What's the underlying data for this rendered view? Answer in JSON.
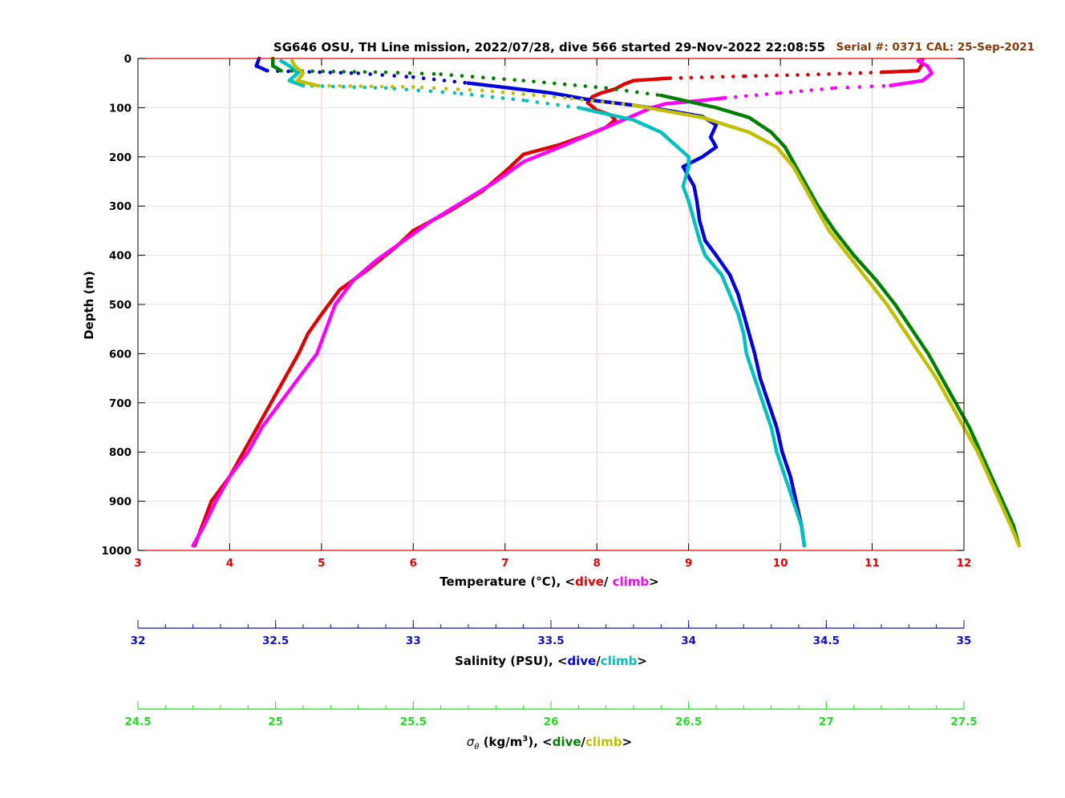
{
  "colors": {
    "temp_axis": "#e60000",
    "sal_axis": "#1010c0",
    "dens_axis": "#22e022",
    "temp_dive": "#e00000",
    "temp_climb": "#ff00ff",
    "sal_dive": "#0000dd",
    "sal_climb": "#00c0c0",
    "dens_dive": "#007f00",
    "dens_climb": "#c0c000",
    "serial": "#8b3a0a",
    "grid": "#f5c8c8"
  },
  "chart_data": {
    "type": "scatter",
    "title": "SG646 OSU, TH Line mission, 2022/07/28, dive 566 started 29-Nov-2022 22:08:55",
    "annotation": "Serial #: 0371  CAL: 25-Sep-2021",
    "ylabel": "Depth (m)",
    "ylim": [
      0,
      1000
    ],
    "yticks": [
      "0",
      "100",
      "200",
      "300",
      "400",
      "500",
      "600",
      "700",
      "800",
      "900",
      "1000"
    ],
    "grid": true,
    "axes": {
      "temperature": {
        "label_prefix": "Temperature (°C), <",
        "dive_label": "dive",
        "sep": "/ ",
        "climb_label": "climb",
        "label_suffix": ">",
        "xlim": [
          3,
          12
        ],
        "ticks": [
          "3",
          "4",
          "5",
          "6",
          "7",
          "8",
          "9",
          "10",
          "11",
          "12"
        ]
      },
      "salinity": {
        "label_prefix": "Salinity (PSU), <",
        "dive_label": "dive",
        "sep": "/",
        "climb_label": "climb",
        "label_suffix": ">",
        "xlim": [
          32,
          35
        ],
        "ticks": [
          "32",
          "32.5",
          "33",
          "33.5",
          "34",
          "34.5",
          "35"
        ]
      },
      "density": {
        "label_symbol": "σ",
        "label_sub": "θ",
        "label_unit": " (kg/m",
        "label_sup": "3",
        "label_prefix": "), <",
        "dive_label": "dive",
        "sep": "/",
        "climb_label": "climb",
        "label_suffix": ">",
        "xlim": [
          24.5,
          27.5
        ],
        "ticks": [
          "24.5",
          "25",
          "25.5",
          "26",
          "26.5",
          "27",
          "27.5"
        ]
      }
    },
    "series": [
      {
        "name": "temperature dive",
        "axis": "temperature",
        "points": [
          [
            11.55,
            10
          ],
          [
            11.5,
            25
          ],
          [
            11.1,
            28
          ],
          [
            10.3,
            33
          ],
          [
            9.6,
            36
          ],
          [
            8.8,
            40
          ],
          [
            8.4,
            45
          ],
          [
            8.3,
            52
          ],
          [
            8.2,
            62
          ],
          [
            8.05,
            70
          ],
          [
            7.95,
            78
          ],
          [
            7.9,
            90
          ],
          [
            8.0,
            105
          ],
          [
            8.15,
            115
          ],
          [
            8.2,
            125
          ],
          [
            8.1,
            140
          ],
          [
            7.9,
            155
          ],
          [
            7.6,
            175
          ],
          [
            7.2,
            195
          ],
          [
            7.0,
            230
          ],
          [
            6.75,
            270
          ],
          [
            6.4,
            310
          ],
          [
            6.0,
            350
          ],
          [
            5.8,
            385
          ],
          [
            5.5,
            430
          ],
          [
            5.2,
            470
          ],
          [
            5.0,
            520
          ],
          [
            4.85,
            560
          ],
          [
            4.75,
            600
          ],
          [
            4.6,
            650
          ],
          [
            4.45,
            700
          ],
          [
            4.3,
            750
          ],
          [
            4.15,
            800
          ],
          [
            4.0,
            850
          ],
          [
            3.8,
            900
          ],
          [
            3.7,
            950
          ],
          [
            3.62,
            990
          ]
        ]
      },
      {
        "name": "temperature climb",
        "axis": "temperature",
        "points": [
          [
            3.6,
            990
          ],
          [
            3.72,
            950
          ],
          [
            3.85,
            900
          ],
          [
            4.0,
            850
          ],
          [
            4.2,
            800
          ],
          [
            4.35,
            750
          ],
          [
            4.55,
            700
          ],
          [
            4.75,
            650
          ],
          [
            4.95,
            600
          ],
          [
            5.05,
            550
          ],
          [
            5.15,
            500
          ],
          [
            5.35,
            450
          ],
          [
            5.6,
            410
          ],
          [
            5.9,
            370
          ],
          [
            6.2,
            330
          ],
          [
            6.55,
            290
          ],
          [
            6.9,
            250
          ],
          [
            7.2,
            210
          ],
          [
            7.6,
            180
          ],
          [
            7.85,
            160
          ],
          [
            8.1,
            140
          ],
          [
            8.35,
            120
          ],
          [
            8.6,
            100
          ],
          [
            8.75,
            92
          ],
          [
            9.0,
            88
          ],
          [
            9.4,
            80
          ],
          [
            10.0,
            70
          ],
          [
            10.6,
            60
          ],
          [
            11.2,
            55
          ],
          [
            11.55,
            45
          ],
          [
            11.65,
            30
          ],
          [
            11.6,
            15
          ],
          [
            11.5,
            5
          ],
          [
            11.55,
            2
          ]
        ]
      },
      {
        "name": "salinity dive",
        "axis": "salinity",
        "points": [
          [
            32.44,
            0
          ],
          [
            32.43,
            15
          ],
          [
            32.47,
            25
          ],
          [
            32.8,
            30
          ],
          [
            33.0,
            38
          ],
          [
            33.2,
            50
          ],
          [
            33.5,
            70
          ],
          [
            33.65,
            85
          ],
          [
            33.8,
            95
          ],
          [
            33.95,
            108
          ],
          [
            34.05,
            118
          ],
          [
            34.1,
            135
          ],
          [
            34.08,
            160
          ],
          [
            34.1,
            180
          ],
          [
            34.05,
            200
          ],
          [
            33.98,
            220
          ],
          [
            34.0,
            240
          ],
          [
            34.02,
            260
          ],
          [
            34.03,
            290
          ],
          [
            34.04,
            330
          ],
          [
            34.06,
            370
          ],
          [
            34.1,
            400
          ],
          [
            34.15,
            440
          ],
          [
            34.18,
            480
          ],
          [
            34.2,
            520
          ],
          [
            34.22,
            560
          ],
          [
            34.24,
            600
          ],
          [
            34.26,
            650
          ],
          [
            34.29,
            700
          ],
          [
            34.32,
            750
          ],
          [
            34.34,
            800
          ],
          [
            34.37,
            850
          ],
          [
            34.39,
            900
          ],
          [
            34.41,
            950
          ],
          [
            34.42,
            990
          ]
        ]
      },
      {
        "name": "salinity climb",
        "axis": "salinity",
        "points": [
          [
            34.42,
            990
          ],
          [
            34.41,
            950
          ],
          [
            34.38,
            900
          ],
          [
            34.35,
            850
          ],
          [
            34.32,
            800
          ],
          [
            34.3,
            750
          ],
          [
            34.27,
            700
          ],
          [
            34.24,
            650
          ],
          [
            34.21,
            600
          ],
          [
            34.2,
            560
          ],
          [
            34.18,
            520
          ],
          [
            34.15,
            480
          ],
          [
            34.12,
            440
          ],
          [
            34.06,
            400
          ],
          [
            34.04,
            370
          ],
          [
            34.02,
            330
          ],
          [
            34.0,
            290
          ],
          [
            33.98,
            260
          ],
          [
            33.99,
            240
          ],
          [
            34.0,
            220
          ],
          [
            34.0,
            200
          ],
          [
            33.95,
            175
          ],
          [
            33.9,
            150
          ],
          [
            33.8,
            125
          ],
          [
            33.6,
            100
          ],
          [
            33.4,
            85
          ],
          [
            33.15,
            70
          ],
          [
            32.9,
            60
          ],
          [
            32.6,
            55
          ],
          [
            32.55,
            45
          ],
          [
            32.58,
            30
          ],
          [
            32.55,
            15
          ],
          [
            32.52,
            5
          ]
        ]
      },
      {
        "name": "density dive",
        "axis": "density",
        "points": [
          [
            24.99,
            0
          ],
          [
            24.99,
            15
          ],
          [
            25.02,
            25
          ],
          [
            25.4,
            28
          ],
          [
            25.6,
            32
          ],
          [
            25.9,
            45
          ],
          [
            26.2,
            60
          ],
          [
            26.4,
            75
          ],
          [
            26.6,
            100
          ],
          [
            26.72,
            120
          ],
          [
            26.8,
            150
          ],
          [
            26.85,
            180
          ],
          [
            26.88,
            210
          ],
          [
            26.92,
            250
          ],
          [
            26.97,
            300
          ],
          [
            27.03,
            350
          ],
          [
            27.1,
            400
          ],
          [
            27.18,
            450
          ],
          [
            27.25,
            500
          ],
          [
            27.31,
            550
          ],
          [
            27.37,
            600
          ],
          [
            27.42,
            650
          ],
          [
            27.47,
            700
          ],
          [
            27.52,
            750
          ],
          [
            27.56,
            800
          ],
          [
            27.6,
            850
          ],
          [
            27.64,
            900
          ],
          [
            27.68,
            950
          ],
          [
            27.7,
            990
          ]
        ]
      },
      {
        "name": "density climb",
        "axis": "density",
        "points": [
          [
            27.7,
            990
          ],
          [
            27.67,
            950
          ],
          [
            27.63,
            900
          ],
          [
            27.59,
            850
          ],
          [
            27.55,
            800
          ],
          [
            27.5,
            750
          ],
          [
            27.45,
            700
          ],
          [
            27.4,
            650
          ],
          [
            27.34,
            600
          ],
          [
            27.28,
            550
          ],
          [
            27.22,
            500
          ],
          [
            27.15,
            450
          ],
          [
            27.08,
            400
          ],
          [
            27.01,
            350
          ],
          [
            26.96,
            300
          ],
          [
            26.92,
            260
          ],
          [
            26.88,
            220
          ],
          [
            26.82,
            180
          ],
          [
            26.72,
            150
          ],
          [
            26.55,
            120
          ],
          [
            26.3,
            95
          ],
          [
            26.05,
            80
          ],
          [
            25.75,
            65
          ],
          [
            25.5,
            58
          ],
          [
            25.15,
            55
          ],
          [
            25.08,
            45
          ],
          [
            25.1,
            30
          ],
          [
            25.07,
            15
          ],
          [
            25.06,
            5
          ]
        ]
      }
    ]
  }
}
